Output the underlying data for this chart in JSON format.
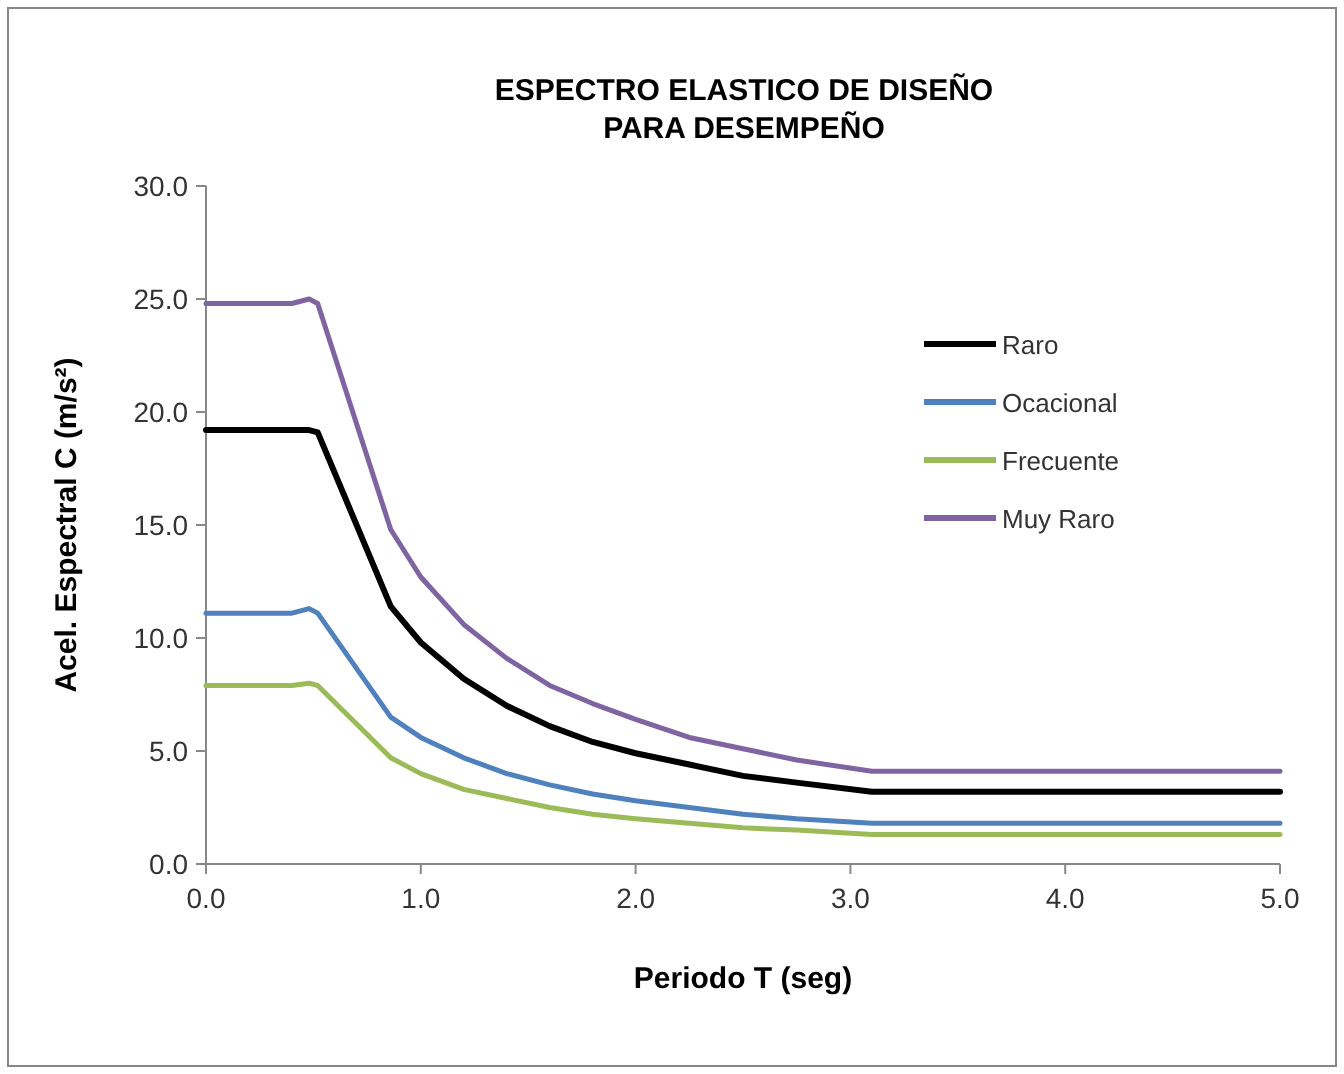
{
  "chart_data": {
    "type": "line",
    "title": "ESPECTRO ELASTICO DE DISEÑO PARA DESEMPEÑO",
    "xlabel": "Periodo  T (seg)",
    "ylabel": "Acel. Espectral C (m/s²)",
    "x": [
      0,
      0.4,
      0.48,
      0.52,
      0.86,
      1.0,
      1.2,
      1.4,
      1.6,
      1.8,
      2.0,
      2.25,
      2.5,
      2.75,
      3.1,
      4.0,
      5.0
    ],
    "series": [
      {
        "name": "Raro",
        "color": "#000000",
        "values": [
          19.2,
          19.2,
          19.2,
          19.1,
          11.4,
          9.8,
          8.2,
          7.0,
          6.1,
          5.4,
          4.9,
          4.4,
          3.9,
          3.6,
          3.2,
          3.2,
          3.2
        ]
      },
      {
        "name": "Ocacional",
        "color": "#4f81bd",
        "values": [
          11.1,
          11.1,
          11.3,
          11.1,
          6.5,
          5.6,
          4.7,
          4.0,
          3.5,
          3.1,
          2.8,
          2.5,
          2.2,
          2.0,
          1.8,
          1.8,
          1.8
        ]
      },
      {
        "name": "Frecuente",
        "color": "#9bbb59",
        "values": [
          7.9,
          7.9,
          8.0,
          7.9,
          4.7,
          4.0,
          3.3,
          2.9,
          2.5,
          2.2,
          2.0,
          1.8,
          1.6,
          1.5,
          1.3,
          1.3,
          1.3
        ]
      },
      {
        "name": "Muy Raro",
        "color": "#8064a2",
        "values": [
          24.8,
          24.8,
          25.0,
          24.8,
          14.8,
          12.7,
          10.6,
          9.1,
          7.9,
          7.1,
          6.4,
          5.6,
          5.1,
          4.6,
          4.1,
          4.1,
          4.1
        ]
      }
    ],
    "xlim": [
      0,
      5
    ],
    "xticks": [
      {
        "value": 0,
        "label": "0.0"
      },
      {
        "value": 1,
        "label": "1.0"
      },
      {
        "value": 2,
        "label": "2.0"
      },
      {
        "value": 3,
        "label": "3.0"
      },
      {
        "value": 4,
        "label": "4.0"
      },
      {
        "value": 5,
        "label": "5.0"
      }
    ],
    "ylim": [
      0,
      30
    ],
    "yticks": [
      {
        "value": 0,
        "label": "0.0"
      },
      {
        "value": 5,
        "label": "5.0"
      },
      {
        "value": 10,
        "label": "10.0"
      },
      {
        "value": 15,
        "label": "15.0"
      },
      {
        "value": 20,
        "label": "20.0"
      },
      {
        "value": 25,
        "label": "25.0"
      },
      {
        "value": 30,
        "label": "30.0"
      }
    ],
    "legend": "top right",
    "grid": false,
    "marker": "none",
    "line_style": "solid"
  }
}
